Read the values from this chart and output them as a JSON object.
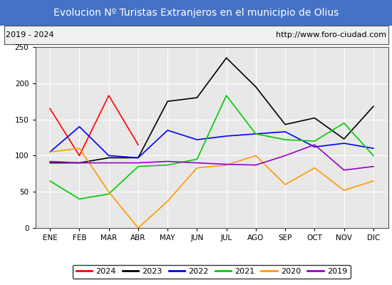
{
  "title": "Evolucion Nº Turistas Extranjeros en el municipio de Olius",
  "subtitle_left": "2019 - 2024",
  "subtitle_right": "http://www.foro-ciudad.com",
  "months": [
    "ENE",
    "FEB",
    "MAR",
    "ABR",
    "MAY",
    "JUN",
    "JUL",
    "AGO",
    "SEP",
    "OCT",
    "NOV",
    "DIC"
  ],
  "ylim": [
    0,
    250
  ],
  "yticks": [
    0,
    50,
    100,
    150,
    200,
    250
  ],
  "series": {
    "2024": {
      "color": "#ff0000",
      "values": [
        165,
        100,
        183,
        115,
        null,
        null,
        null,
        null,
        null,
        null,
        null,
        null
      ]
    },
    "2023": {
      "color": "#000000",
      "values": [
        90,
        90,
        97,
        97,
        175,
        180,
        235,
        195,
        143,
        152,
        123,
        168
      ]
    },
    "2022": {
      "color": "#0000ff",
      "values": [
        105,
        140,
        100,
        97,
        135,
        122,
        127,
        130,
        133,
        112,
        117,
        110
      ]
    },
    "2021": {
      "color": "#00cc00",
      "values": [
        65,
        40,
        47,
        85,
        87,
        95,
        183,
        130,
        122,
        120,
        145,
        100
      ]
    },
    "2020": {
      "color": "#ff9900",
      "values": [
        105,
        110,
        50,
        0,
        37,
        83,
        87,
        100,
        60,
        83,
        52,
        65
      ]
    },
    "2019": {
      "color": "#9900cc",
      "values": [
        92,
        90,
        90,
        90,
        92,
        90,
        88,
        87,
        100,
        115,
        80,
        85
      ]
    }
  },
  "title_bg_color": "#4472c4",
  "title_text_color": "#ffffff",
  "plot_bg_color": "#e8e8e8",
  "grid_color": "#ffffff",
  "border_color": "#555555",
  "subtitle_box_color": "#f0f0f0",
  "legend_order": [
    "2024",
    "2023",
    "2022",
    "2021",
    "2020",
    "2019"
  ],
  "fig_width": 5.5,
  "fig_height": 4.0,
  "dpi": 100
}
